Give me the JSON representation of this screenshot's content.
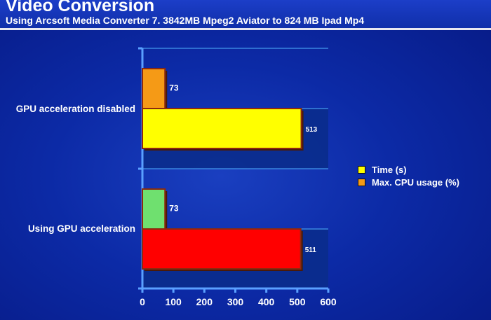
{
  "header": {
    "title": "Video Conversion",
    "subtitle": "Using Arcsoft Media Converter 7. 3842MB Mpeg2 Aviator  to 824  MB Ipad Mp4"
  },
  "colors": {
    "background": "#0c2aa6",
    "time_disabled": "#ffff00",
    "cpu_disabled": "#f59a16",
    "time_gpu": "#ff0000",
    "cpu_gpu": "#6fe06f",
    "bar_border": "#8b2a10"
  },
  "legend": {
    "items": [
      {
        "label": "Time (s)",
        "color": "#ffff00"
      },
      {
        "label": "Max. CPU usage (%)",
        "color": "#f59a16"
      }
    ]
  },
  "chart_data": {
    "type": "bar",
    "orientation": "horizontal",
    "categories": [
      "GPU acceleration disabled",
      "Using GPU acceleration"
    ],
    "series": [
      {
        "name": "Max. CPU usage (%)",
        "values": [
          73,
          73
        ]
      },
      {
        "name": "Time (s)",
        "values": [
          513,
          511
        ]
      }
    ],
    "xlim": [
      0,
      600
    ],
    "xticks": [
      0,
      100,
      200,
      300,
      400,
      500,
      600
    ],
    "data_labels": [
      "73",
      "513",
      "73",
      "511"
    ],
    "legend_position": "right"
  }
}
